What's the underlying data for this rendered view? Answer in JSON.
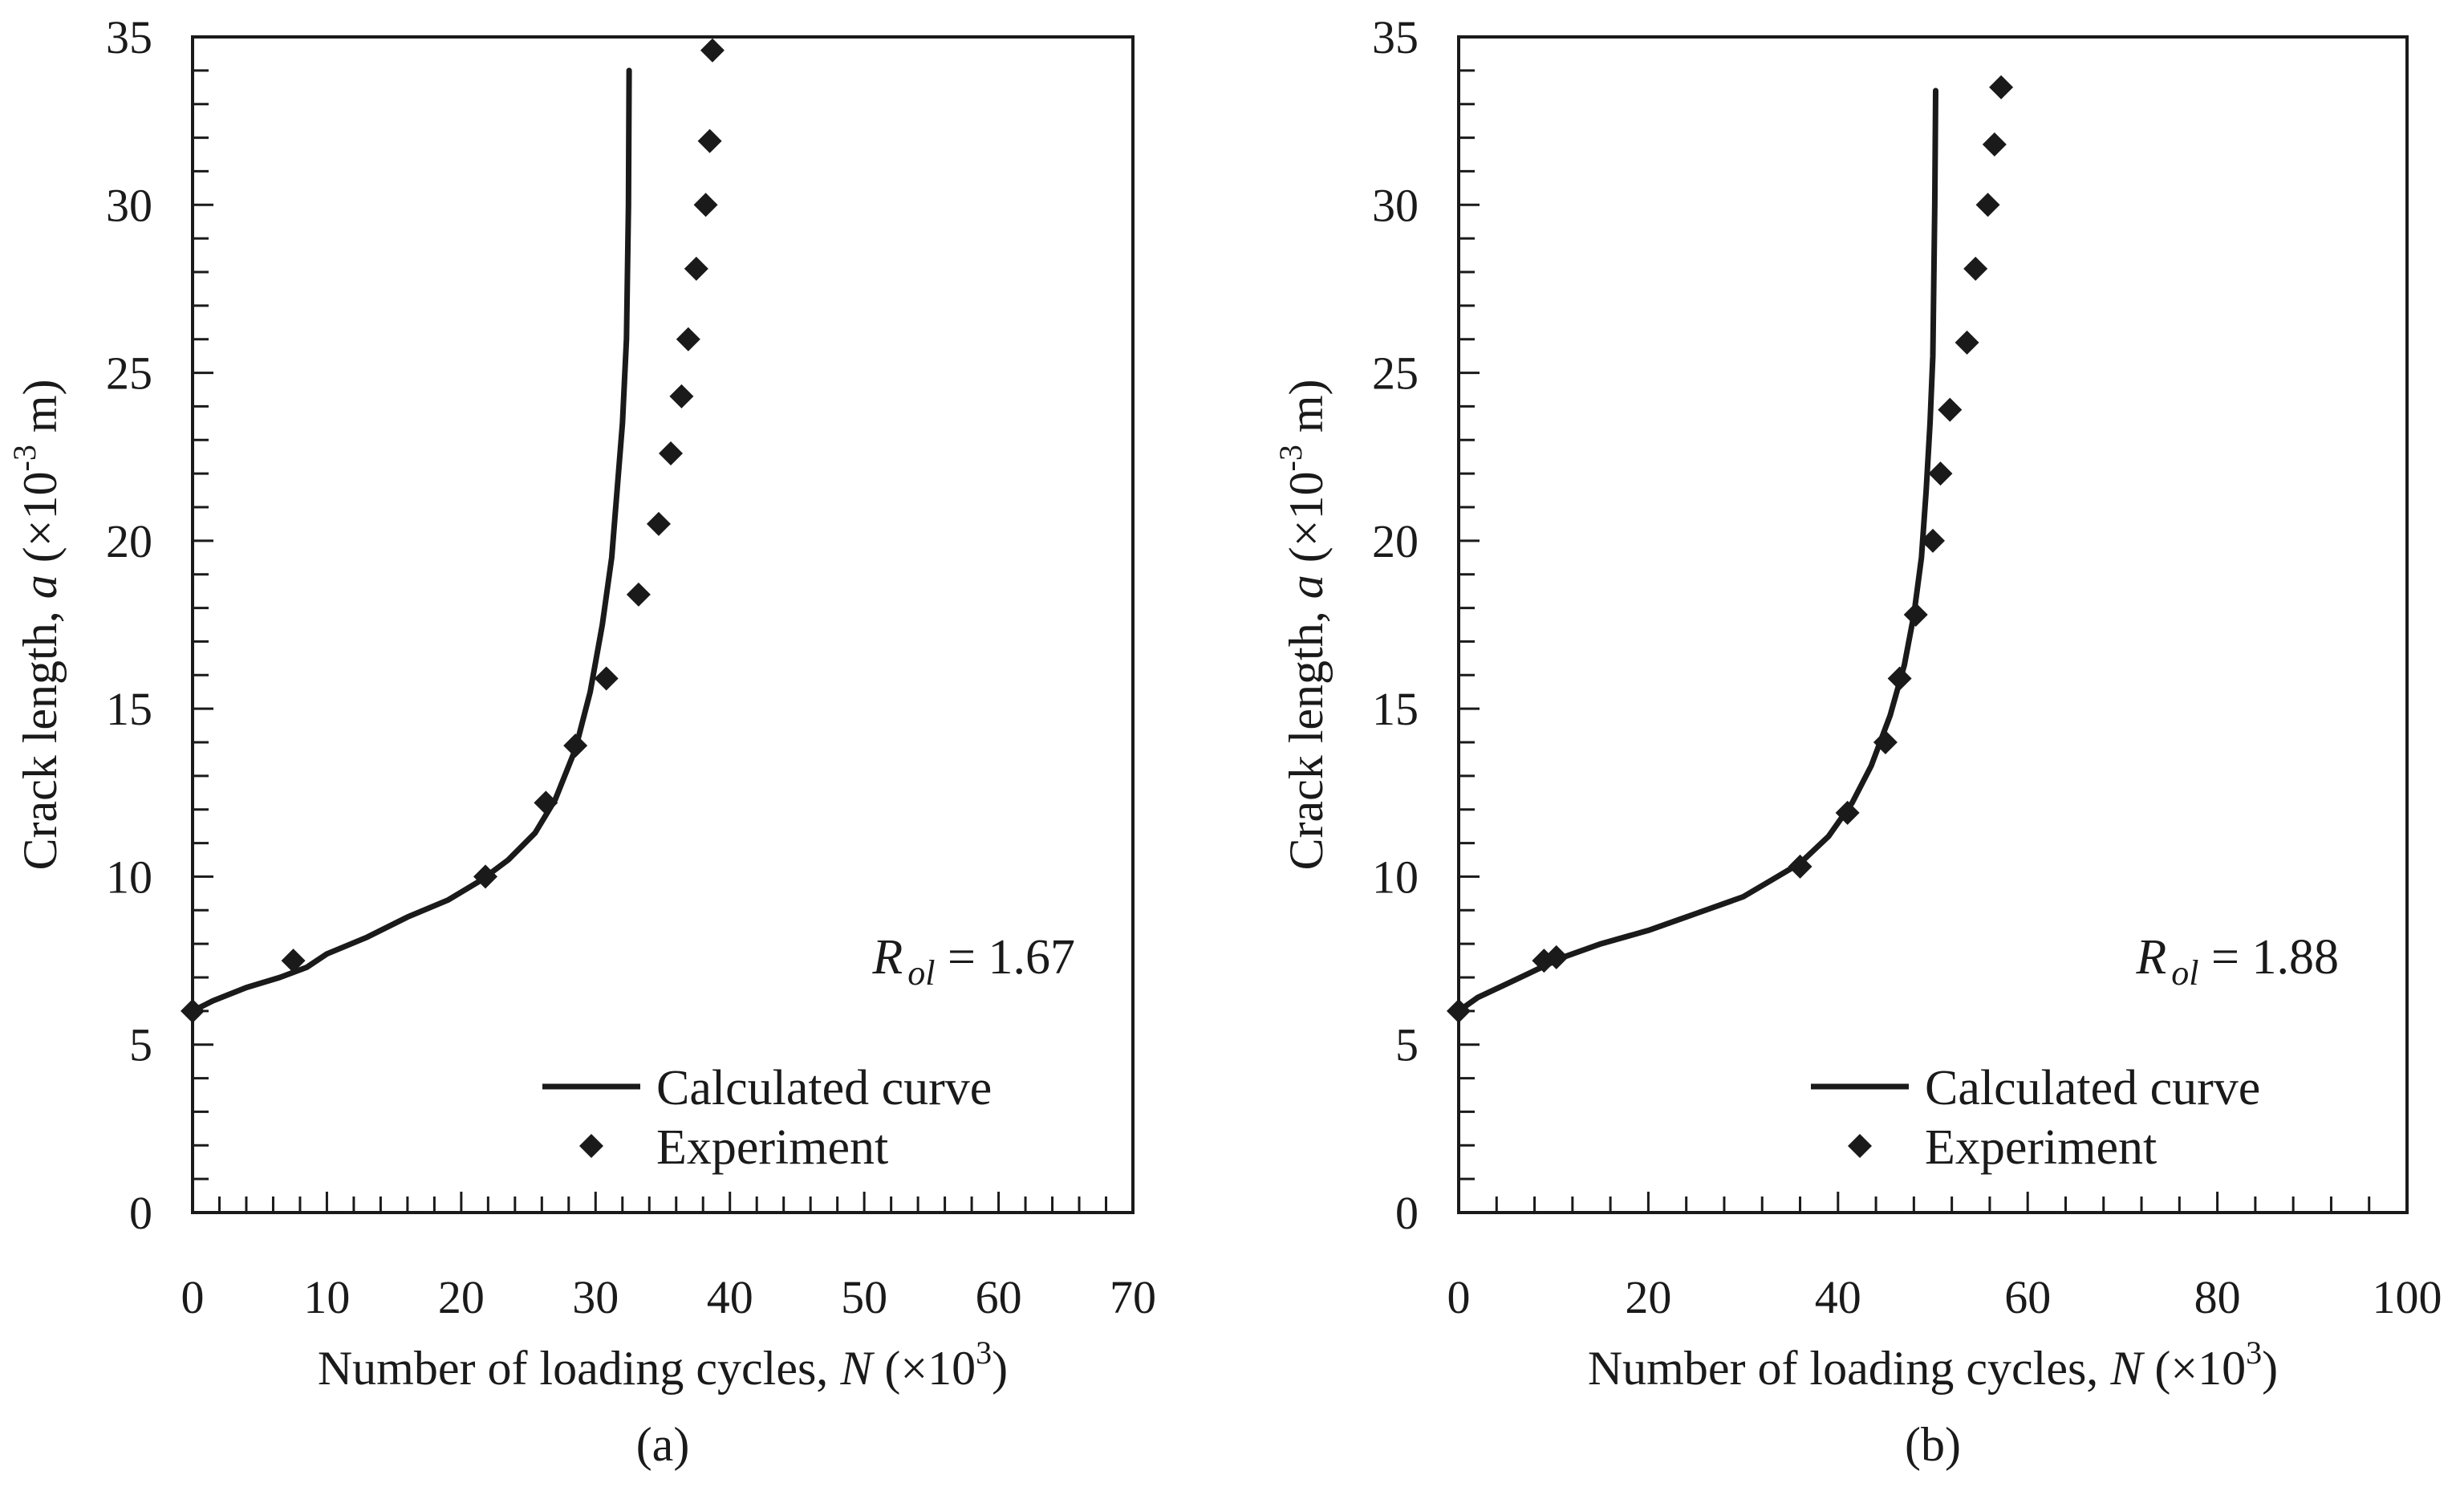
{
  "chart_data": [
    {
      "id": "a",
      "type": "line",
      "panel_label": "(a)",
      "xlabel": {
        "main": "Number of loading cycles, ",
        "italic": "N",
        "unit_pre": "  (×10",
        "unit_sup": "3",
        "unit_post": ")"
      },
      "ylabel": {
        "main": "Crack length, ",
        "italic": "a",
        "unit_pre": "  (×10",
        "unit_sup": "-3",
        "unit_post": " m)"
      },
      "xlim": [
        0,
        70
      ],
      "ylim": [
        0,
        35
      ],
      "xticks": [
        0,
        10,
        20,
        30,
        40,
        50,
        60,
        70
      ],
      "yticks": [
        0,
        5,
        10,
        15,
        20,
        25,
        30,
        35
      ],
      "x_minor_step": 2,
      "y_minor_step": 1,
      "annotation": {
        "symbol": "R",
        "subscript": "ol",
        "value": " = 1.67"
      },
      "legend": [
        "Calculated curve",
        "Experiment"
      ],
      "series": [
        {
          "name": "Calculated curve",
          "kind": "line",
          "x": [
            0,
            1.5,
            4,
            6.5,
            8.5,
            10,
            13,
            16,
            19,
            21.5,
            23.5,
            25.5,
            27,
            28.5,
            29.6,
            30.5,
            31.2,
            31.6,
            32,
            32.3,
            32.45,
            32.5
          ],
          "y": [
            6,
            6.3,
            6.7,
            7,
            7.3,
            7.7,
            8.2,
            8.8,
            9.3,
            9.9,
            10.5,
            11.3,
            12.3,
            13.8,
            15.5,
            17.5,
            19.5,
            21.5,
            23.5,
            26,
            30,
            34
          ]
        },
        {
          "name": "Experiment",
          "kind": "scatter",
          "x": [
            0,
            7.5,
            21.8,
            26.3,
            28.5,
            30.8,
            33.2,
            34.7,
            35.6,
            36.4,
            36.9,
            37.5,
            38.2,
            38.5,
            38.7
          ],
          "y": [
            6,
            7.5,
            10,
            12.2,
            13.9,
            15.9,
            18.4,
            20.5,
            22.6,
            24.3,
            26,
            28.1,
            30,
            31.9,
            34.6
          ]
        }
      ]
    },
    {
      "id": "b",
      "type": "line",
      "panel_label": "(b)",
      "xlabel": {
        "main": "Number of loading cycles, ",
        "italic": "N",
        "unit_pre": "  (×10",
        "unit_sup": "3",
        "unit_post": ")"
      },
      "ylabel": {
        "main": "Crack length, ",
        "italic": "a",
        "unit_pre": "  (×10",
        "unit_sup": "-3",
        "unit_post": " m)"
      },
      "xlim": [
        0,
        100
      ],
      "ylim": [
        0,
        35
      ],
      "xticks": [
        0,
        20,
        40,
        60,
        80,
        100
      ],
      "yticks": [
        0,
        5,
        10,
        15,
        20,
        25,
        30,
        35
      ],
      "x_minor_step": 4,
      "y_minor_step": 1,
      "annotation": {
        "symbol": "R",
        "subscript": "ol",
        "value": " = 1.88"
      },
      "legend": [
        "Calculated curve",
        "Experiment"
      ],
      "series": [
        {
          "name": "Calculated curve",
          "kind": "line",
          "x": [
            0,
            2,
            5,
            8,
            11,
            15,
            20,
            25,
            30,
            33,
            36,
            39,
            41.5,
            43.5,
            45.5,
            47,
            48,
            48.8,
            49.3,
            49.7,
            50,
            50.2,
            50.3
          ],
          "y": [
            6,
            6.4,
            6.8,
            7.2,
            7.6,
            8,
            8.4,
            8.9,
            9.4,
            9.9,
            10.4,
            11.2,
            12.2,
            13.3,
            14.8,
            16.3,
            17.8,
            19.5,
            21.5,
            23.5,
            25.5,
            30,
            33.4
          ]
        },
        {
          "name": "Experiment",
          "kind": "scatter",
          "x": [
            0,
            9,
            10.3,
            36,
            41,
            45,
            46.5,
            48.2,
            50,
            50.8,
            51.8,
            53.6,
            54.5,
            55.8,
            56.5,
            57.2
          ],
          "y": [
            6,
            7.5,
            7.6,
            10.3,
            11.9,
            14,
            15.9,
            17.8,
            20,
            22,
            23.9,
            25.9,
            28.1,
            30,
            31.8,
            33.5
          ]
        }
      ]
    }
  ]
}
